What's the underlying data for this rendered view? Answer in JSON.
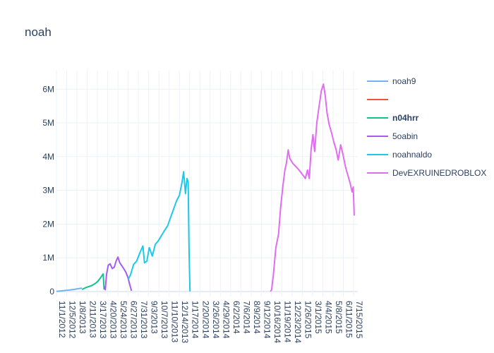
{
  "chart_data": {
    "type": "line",
    "title": "noah",
    "xlabel": "",
    "ylabel": "",
    "xlim": [
      "2012-11-01",
      "2015-07-29"
    ],
    "ylim": [
      -150000,
      6550000
    ],
    "grid": true,
    "legend_position": "right",
    "x_ticks": [
      "11/1/2012",
      "12/5/2012",
      "1/8/2013",
      "2/11/2013",
      "3/17/2013",
      "4/20/2013",
      "5/24/2013",
      "6/27/2013",
      "7/31/2013",
      "9/3/2013",
      "10/7/2013",
      "11/10/2013",
      "12/14/2013",
      "1/17/2014",
      "2/20/2014",
      "3/26/2014",
      "4/29/2014",
      "6/2/2014",
      "7/6/2014",
      "8/9/2014",
      "9/12/2014",
      "10/16/2014",
      "11/19/2014",
      "12/23/2014",
      "1/26/2015",
      "3/1/2015",
      "4/4/2015",
      "5/8/2015",
      "6/11/2015",
      "7/15/2015"
    ],
    "y_ticks": [
      {
        "value": 0,
        "label": "0"
      },
      {
        "value": 1000000,
        "label": "1M"
      },
      {
        "value": 2000000,
        "label": "2M"
      },
      {
        "value": 3000000,
        "label": "3M"
      },
      {
        "value": 4000000,
        "label": "4M"
      },
      {
        "value": 5000000,
        "label": "5M"
      },
      {
        "value": 6000000,
        "label": "6M"
      }
    ],
    "series": [
      {
        "name": "noah9",
        "color": "#6fb4f0",
        "legend_bold": false,
        "points": [
          [
            "2012-11-01",
            0
          ],
          [
            "2012-11-15",
            15000
          ],
          [
            "2012-12-01",
            30000
          ],
          [
            "2012-12-15",
            45000
          ],
          [
            "2013-01-01",
            65000
          ],
          [
            "2013-01-15",
            85000
          ],
          [
            "2013-01-25",
            100000
          ]
        ]
      },
      {
        "name": "",
        "color": "#ef553b",
        "legend_bold": false,
        "points": []
      },
      {
        "name": "n04hrr",
        "color": "#10c48a",
        "legend_bold": true,
        "points": [
          [
            "2013-01-25",
            60000
          ],
          [
            "2013-02-05",
            110000
          ],
          [
            "2013-02-15",
            140000
          ],
          [
            "2013-02-25",
            170000
          ],
          [
            "2013-03-05",
            210000
          ],
          [
            "2013-03-12",
            250000
          ],
          [
            "2013-03-18",
            300000
          ],
          [
            "2013-03-25",
            380000
          ],
          [
            "2013-04-01",
            470000
          ],
          [
            "2013-04-05",
            520000
          ],
          [
            "2013-04-08",
            60000
          ]
        ]
      },
      {
        "name": "5oabin",
        "color": "#a45cf0",
        "legend_bold": false,
        "points": [
          [
            "2013-04-08",
            150000
          ],
          [
            "2013-04-12",
            50000
          ],
          [
            "2013-04-16",
            500000
          ],
          [
            "2013-04-22",
            780000
          ],
          [
            "2013-04-28",
            820000
          ],
          [
            "2013-05-05",
            680000
          ],
          [
            "2013-05-12",
            720000
          ],
          [
            "2013-05-18",
            900000
          ],
          [
            "2013-05-24",
            1020000
          ],
          [
            "2013-05-30",
            850000
          ],
          [
            "2013-06-06",
            760000
          ],
          [
            "2013-06-14",
            650000
          ],
          [
            "2013-06-20",
            560000
          ],
          [
            "2013-06-26",
            420000
          ],
          [
            "2013-07-01",
            250000
          ],
          [
            "2013-07-08",
            20000
          ]
        ]
      },
      {
        "name": "noahnaldo",
        "color": "#1ec8e6",
        "legend_bold": false,
        "points": [
          [
            "2013-06-27",
            350000
          ],
          [
            "2013-07-05",
            500000
          ],
          [
            "2013-07-15",
            800000
          ],
          [
            "2013-07-25",
            900000
          ],
          [
            "2013-08-05",
            1150000
          ],
          [
            "2013-08-15",
            1350000
          ],
          [
            "2013-08-20",
            850000
          ],
          [
            "2013-08-28",
            900000
          ],
          [
            "2013-09-05",
            1300000
          ],
          [
            "2013-09-15",
            1050000
          ],
          [
            "2013-09-25",
            1400000
          ],
          [
            "2013-10-05",
            1500000
          ],
          [
            "2013-10-15",
            1650000
          ],
          [
            "2013-10-25",
            1800000
          ],
          [
            "2013-11-05",
            1950000
          ],
          [
            "2013-11-15",
            2200000
          ],
          [
            "2013-11-25",
            2450000
          ],
          [
            "2013-12-05",
            2700000
          ],
          [
            "2013-12-14",
            2850000
          ],
          [
            "2013-12-22",
            3200000
          ],
          [
            "2013-12-28",
            3550000
          ],
          [
            "2014-01-03",
            2900000
          ],
          [
            "2014-01-08",
            3350000
          ],
          [
            "2014-01-12",
            3250000
          ],
          [
            "2014-01-15",
            1200000
          ],
          [
            "2014-01-18",
            0
          ]
        ]
      },
      {
        "name": "DevEXRUINEDROBLOX",
        "color": "#e06cf0",
        "legend_bold": false,
        "points": [
          [
            "2014-10-12",
            0
          ],
          [
            "2014-10-16",
            50000
          ],
          [
            "2014-10-22",
            500000
          ],
          [
            "2014-10-30",
            1300000
          ],
          [
            "2014-11-08",
            1700000
          ],
          [
            "2014-11-15",
            2500000
          ],
          [
            "2014-11-22",
            3100000
          ],
          [
            "2014-11-29",
            3600000
          ],
          [
            "2014-12-04",
            3800000
          ],
          [
            "2014-12-10",
            4200000
          ],
          [
            "2014-12-15",
            3950000
          ],
          [
            "2014-12-25",
            3800000
          ],
          [
            "2015-01-05",
            3700000
          ],
          [
            "2015-01-15",
            3600000
          ],
          [
            "2015-01-28",
            3450000
          ],
          [
            "2015-02-05",
            3350000
          ],
          [
            "2015-02-12",
            3600000
          ],
          [
            "2015-02-18",
            3350000
          ],
          [
            "2015-02-24",
            4200000
          ],
          [
            "2015-03-02",
            4650000
          ],
          [
            "2015-03-08",
            4150000
          ],
          [
            "2015-03-15",
            5000000
          ],
          [
            "2015-03-22",
            5450000
          ],
          [
            "2015-03-30",
            5950000
          ],
          [
            "2015-04-06",
            6150000
          ],
          [
            "2015-04-12",
            5800000
          ],
          [
            "2015-04-18",
            5300000
          ],
          [
            "2015-04-25",
            4950000
          ],
          [
            "2015-05-03",
            4700000
          ],
          [
            "2015-05-10",
            4450000
          ],
          [
            "2015-05-18",
            4200000
          ],
          [
            "2015-05-25",
            3900000
          ],
          [
            "2015-06-02",
            4350000
          ],
          [
            "2015-06-10",
            4050000
          ],
          [
            "2015-06-18",
            3700000
          ],
          [
            "2015-06-26",
            3450000
          ],
          [
            "2015-07-04",
            3200000
          ],
          [
            "2015-07-10",
            2950000
          ],
          [
            "2015-07-14",
            3100000
          ],
          [
            "2015-07-17",
            2250000
          ]
        ]
      }
    ]
  }
}
